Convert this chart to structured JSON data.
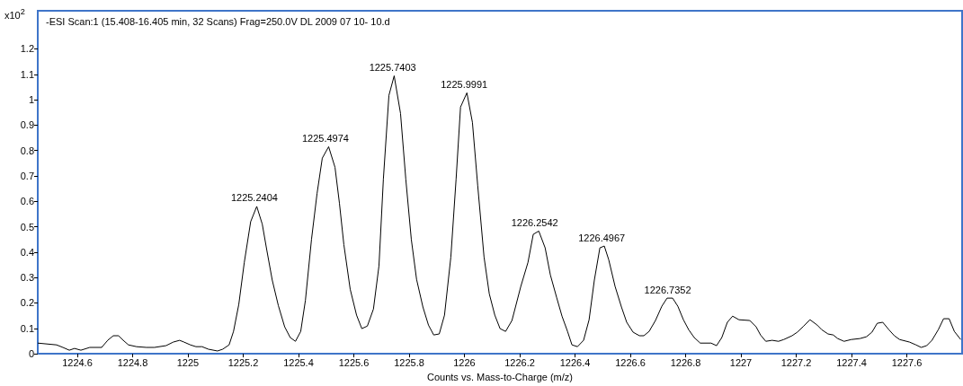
{
  "chart_data": {
    "type": "line",
    "title": "-ESI Scan:1 (15.408-16.405 min, 32 Scans) Frag=250.0V DL 2009 07 10- 10.d",
    "xlabel": "Counts vs. Mass-to-Charge (m/z)",
    "ylabel": "x10$^{2}$",
    "xlim": [
      1224.457,
      1227.8
    ],
    "ylim": [
      0,
      1.35
    ],
    "xticks": [
      1224.6,
      1224.8,
      1225,
      1225.2,
      1225.4,
      1225.6,
      1225.8,
      1226,
      1226.2,
      1226.4,
      1226.6,
      1226.8,
      1227,
      1227.2,
      1227.4,
      1227.6
    ],
    "yticks": [
      0,
      0.1,
      0.2,
      0.3,
      0.4,
      0.5,
      0.6,
      0.7,
      0.8,
      0.9,
      1,
      1.1,
      1.2
    ],
    "grid": false,
    "marker": "none",
    "line_style": "solid",
    "annotations": [
      {
        "text": "1225.2404",
        "x": 1225.2404,
        "y": 0.58
      },
      {
        "text": "1225.4974",
        "x": 1225.4974,
        "y": 0.815
      },
      {
        "text": "1225.7403",
        "x": 1225.7403,
        "y": 1.094
      },
      {
        "text": "1225.9991",
        "x": 1225.9991,
        "y": 1.027
      },
      {
        "text": "1226.2542",
        "x": 1226.2542,
        "y": 0.483
      },
      {
        "text": "1226.4967",
        "x": 1226.4967,
        "y": 0.424
      },
      {
        "text": "1226.7352",
        "x": 1226.7352,
        "y": 0.219
      }
    ],
    "series": [
      {
        "color": "#000000",
        "x": [
          1224.457,
          1224.525,
          1224.548,
          1224.571,
          1224.59,
          1224.613,
          1224.645,
          1224.688,
          1224.71,
          1224.73,
          1224.749,
          1224.766,
          1224.785,
          1224.814,
          1224.85,
          1224.879,
          1224.921,
          1224.947,
          1224.97,
          1224.986,
          1225.009,
          1225.029,
          1225.051,
          1225.074,
          1225.107,
          1225.126,
          1225.149,
          1225.165,
          1225.184,
          1225.204,
          1225.227,
          1225.249,
          1225.269,
          1225.285,
          1225.305,
          1225.327,
          1225.35,
          1225.37,
          1225.389,
          1225.408,
          1225.425,
          1225.447,
          1225.467,
          1225.486,
          1225.509,
          1225.532,
          1225.548,
          1225.564,
          1225.587,
          1225.61,
          1225.629,
          1225.649,
          1225.671,
          1225.691,
          1225.707,
          1225.727,
          1225.746,
          1225.769,
          1225.788,
          1225.808,
          1225.827,
          1225.85,
          1225.87,
          1225.889,
          1225.909,
          1225.928,
          1225.951,
          1225.97,
          1225.986,
          1226.009,
          1226.029,
          1226.048,
          1226.071,
          1226.09,
          1226.11,
          1226.129,
          1226.149,
          1226.172,
          1226.204,
          1226.23,
          1226.249,
          1226.269,
          1226.292,
          1226.311,
          1226.334,
          1226.353,
          1226.373,
          1226.389,
          1226.409,
          1226.431,
          1226.451,
          1226.47,
          1226.49,
          1226.506,
          1226.522,
          1226.545,
          1226.568,
          1226.587,
          1226.61,
          1226.633,
          1226.649,
          1226.668,
          1226.691,
          1226.714,
          1226.733,
          1226.753,
          1226.772,
          1226.792,
          1226.811,
          1226.831,
          1226.853,
          1226.892,
          1226.912,
          1226.931,
          1226.951,
          1226.97,
          1226.993,
          1227.032,
          1227.055,
          1227.071,
          1227.09,
          1227.113,
          1227.136,
          1227.155,
          1227.185,
          1227.204,
          1227.227,
          1227.25,
          1227.276,
          1227.292,
          1227.315,
          1227.334,
          1227.35,
          1227.373,
          1227.399,
          1227.431,
          1227.454,
          1227.474,
          1227.493,
          1227.513,
          1227.535,
          1227.555,
          1227.574,
          1227.61,
          1227.633,
          1227.652,
          1227.672,
          1227.691,
          1227.714,
          1227.733,
          1227.753,
          1227.772,
          1227.795
        ],
        "values": [
          0.042,
          0.035,
          0.025,
          0.014,
          0.021,
          0.014,
          0.025,
          0.025,
          0.053,
          0.071,
          0.071,
          0.053,
          0.035,
          0.028,
          0.025,
          0.025,
          0.032,
          0.046,
          0.053,
          0.046,
          0.035,
          0.028,
          0.028,
          0.018,
          0.011,
          0.018,
          0.035,
          0.088,
          0.194,
          0.36,
          0.52,
          0.58,
          0.51,
          0.41,
          0.29,
          0.19,
          0.106,
          0.064,
          0.049,
          0.088,
          0.21,
          0.45,
          0.63,
          0.77,
          0.815,
          0.734,
          0.593,
          0.43,
          0.254,
          0.152,
          0.099,
          0.109,
          0.176,
          0.346,
          0.688,
          1.017,
          1.094,
          0.946,
          0.688,
          0.45,
          0.293,
          0.184,
          0.113,
          0.074,
          0.078,
          0.152,
          0.381,
          0.688,
          0.971,
          1.027,
          0.911,
          0.664,
          0.381,
          0.236,
          0.152,
          0.099,
          0.088,
          0.131,
          0.265,
          0.36,
          0.47,
          0.483,
          0.417,
          0.31,
          0.22,
          0.148,
          0.088,
          0.035,
          0.028,
          0.053,
          0.134,
          0.29,
          0.417,
          0.424,
          0.37,
          0.265,
          0.184,
          0.124,
          0.085,
          0.071,
          0.071,
          0.088,
          0.131,
          0.187,
          0.219,
          0.219,
          0.187,
          0.134,
          0.095,
          0.064,
          0.042,
          0.042,
          0.032,
          0.064,
          0.124,
          0.148,
          0.134,
          0.131,
          0.106,
          0.074,
          0.049,
          0.053,
          0.049,
          0.056,
          0.071,
          0.085,
          0.109,
          0.134,
          0.113,
          0.095,
          0.078,
          0.074,
          0.06,
          0.049,
          0.056,
          0.06,
          0.067,
          0.085,
          0.12,
          0.124,
          0.095,
          0.071,
          0.056,
          0.046,
          0.035,
          0.025,
          0.032,
          0.053,
          0.095,
          0.138,
          0.138,
          0.088,
          0.056
        ]
      }
    ]
  }
}
